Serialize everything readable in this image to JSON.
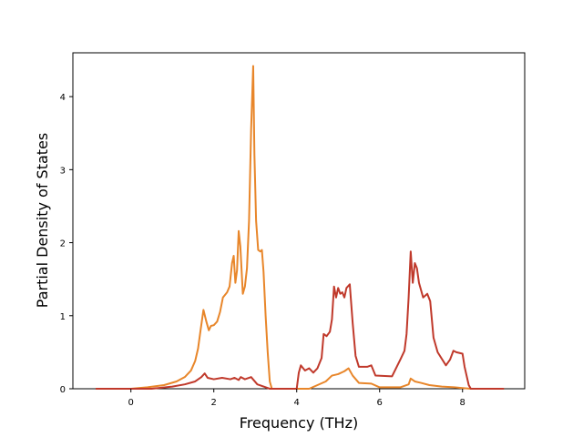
{
  "chart_data": {
    "type": "line",
    "title": "",
    "xlabel": "Frequency (THz)",
    "ylabel": "Partial Density of States",
    "xlim": [
      -1.4,
      9.5
    ],
    "ylim": [
      0,
      4.6
    ],
    "xticks": [
      0,
      2,
      4,
      6,
      8
    ],
    "yticks": [
      0,
      1,
      2,
      3,
      4
    ],
    "grid": false,
    "legend": "none",
    "series": [
      {
        "color": "#e8862a",
        "points": [
          [
            -0.85,
            0
          ],
          [
            0.0,
            0.0
          ],
          [
            0.4,
            0.02
          ],
          [
            0.8,
            0.05
          ],
          [
            1.1,
            0.1
          ],
          [
            1.3,
            0.16
          ],
          [
            1.45,
            0.25
          ],
          [
            1.55,
            0.38
          ],
          [
            1.62,
            0.55
          ],
          [
            1.68,
            0.8
          ],
          [
            1.75,
            1.08
          ],
          [
            1.82,
            0.92
          ],
          [
            1.88,
            0.8
          ],
          [
            1.93,
            0.86
          ],
          [
            2.0,
            0.87
          ],
          [
            2.08,
            0.92
          ],
          [
            2.15,
            1.05
          ],
          [
            2.22,
            1.25
          ],
          [
            2.32,
            1.32
          ],
          [
            2.38,
            1.4
          ],
          [
            2.44,
            1.72
          ],
          [
            2.48,
            1.82
          ],
          [
            2.52,
            1.45
          ],
          [
            2.56,
            1.62
          ],
          [
            2.6,
            2.16
          ],
          [
            2.64,
            1.95
          ],
          [
            2.7,
            1.3
          ],
          [
            2.75,
            1.4
          ],
          [
            2.8,
            1.65
          ],
          [
            2.85,
            2.3
          ],
          [
            2.9,
            3.55
          ],
          [
            2.95,
            4.42
          ],
          [
            2.98,
            3.2
          ],
          [
            3.02,
            2.3
          ],
          [
            3.07,
            1.9
          ],
          [
            3.12,
            1.88
          ],
          [
            3.16,
            1.9
          ],
          [
            3.2,
            1.6
          ],
          [
            3.25,
            1.0
          ],
          [
            3.3,
            0.5
          ],
          [
            3.35,
            0.1
          ],
          [
            3.4,
            0.0
          ],
          [
            4.3,
            0.0
          ],
          [
            4.5,
            0.05
          ],
          [
            4.7,
            0.1
          ],
          [
            4.85,
            0.18
          ],
          [
            5.0,
            0.2
          ],
          [
            5.15,
            0.24
          ],
          [
            5.25,
            0.28
          ],
          [
            5.35,
            0.18
          ],
          [
            5.5,
            0.08
          ],
          [
            5.8,
            0.07
          ],
          [
            6.0,
            0.02
          ],
          [
            6.5,
            0.02
          ],
          [
            6.7,
            0.06
          ],
          [
            6.75,
            0.14
          ],
          [
            6.85,
            0.1
          ],
          [
            7.0,
            0.08
          ],
          [
            7.2,
            0.05
          ],
          [
            7.5,
            0.03
          ],
          [
            7.8,
            0.02
          ],
          [
            8.0,
            0.01
          ],
          [
            8.2,
            0.0
          ],
          [
            9.0,
            0.0
          ]
        ]
      },
      {
        "color": "#c0392b",
        "points": [
          [
            -0.85,
            0
          ],
          [
            0.5,
            0.0
          ],
          [
            1.0,
            0.03
          ],
          [
            1.3,
            0.06
          ],
          [
            1.55,
            0.1
          ],
          [
            1.7,
            0.16
          ],
          [
            1.78,
            0.21
          ],
          [
            1.85,
            0.15
          ],
          [
            2.0,
            0.13
          ],
          [
            2.2,
            0.15
          ],
          [
            2.4,
            0.13
          ],
          [
            2.5,
            0.15
          ],
          [
            2.6,
            0.12
          ],
          [
            2.65,
            0.16
          ],
          [
            2.75,
            0.13
          ],
          [
            2.9,
            0.16
          ],
          [
            3.05,
            0.06
          ],
          [
            3.2,
            0.03
          ],
          [
            3.35,
            0.0
          ],
          [
            4.0,
            0.0
          ],
          [
            4.05,
            0.22
          ],
          [
            4.1,
            0.32
          ],
          [
            4.2,
            0.25
          ],
          [
            4.3,
            0.28
          ],
          [
            4.4,
            0.22
          ],
          [
            4.5,
            0.28
          ],
          [
            4.6,
            0.42
          ],
          [
            4.65,
            0.75
          ],
          [
            4.72,
            0.72
          ],
          [
            4.8,
            0.78
          ],
          [
            4.85,
            0.95
          ],
          [
            4.9,
            1.4
          ],
          [
            4.95,
            1.25
          ],
          [
            5.0,
            1.38
          ],
          [
            5.05,
            1.3
          ],
          [
            5.1,
            1.32
          ],
          [
            5.15,
            1.25
          ],
          [
            5.2,
            1.38
          ],
          [
            5.28,
            1.43
          ],
          [
            5.35,
            0.9
          ],
          [
            5.42,
            0.45
          ],
          [
            5.5,
            0.3
          ],
          [
            5.7,
            0.3
          ],
          [
            5.8,
            0.32
          ],
          [
            5.9,
            0.18
          ],
          [
            6.3,
            0.17
          ],
          [
            6.5,
            0.4
          ],
          [
            6.6,
            0.52
          ],
          [
            6.65,
            0.75
          ],
          [
            6.7,
            1.25
          ],
          [
            6.75,
            1.88
          ],
          [
            6.8,
            1.45
          ],
          [
            6.85,
            1.72
          ],
          [
            6.9,
            1.65
          ],
          [
            6.95,
            1.45
          ],
          [
            7.05,
            1.25
          ],
          [
            7.15,
            1.3
          ],
          [
            7.22,
            1.2
          ],
          [
            7.3,
            0.7
          ],
          [
            7.4,
            0.5
          ],
          [
            7.6,
            0.32
          ],
          [
            7.7,
            0.4
          ],
          [
            7.78,
            0.52
          ],
          [
            7.85,
            0.5
          ],
          [
            8.0,
            0.48
          ],
          [
            8.05,
            0.3
          ],
          [
            8.15,
            0.05
          ],
          [
            8.2,
            0.0
          ],
          [
            9.0,
            0.0
          ]
        ]
      }
    ]
  }
}
